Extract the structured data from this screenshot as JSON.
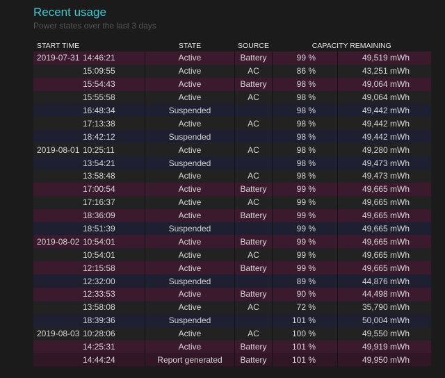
{
  "section": {
    "title": "Recent usage",
    "subtitle": "Power states over the last 3 days"
  },
  "columns": [
    "START TIME",
    "STATE",
    "SOURCE",
    "CAPACITY REMAINING"
  ],
  "colors": {
    "title": "#3cc8d2",
    "battery_row": "#3c1a2e",
    "ac_row": "#222222",
    "suspended_row": "#1f1f32",
    "report_row": "#311726"
  },
  "rows": [
    {
      "date": "2019-07-31",
      "time": "14:46:21",
      "state": "Active",
      "source": "Battery",
      "percent": "99 %",
      "capacity": "49,519 mWh",
      "kind": "battery"
    },
    {
      "date": "",
      "time": "15:09:55",
      "state": "Active",
      "source": "AC",
      "percent": "86 %",
      "capacity": "43,251 mWh",
      "kind": "ac"
    },
    {
      "date": "",
      "time": "15:54:43",
      "state": "Active",
      "source": "Battery",
      "percent": "98 %",
      "capacity": "49,064 mWh",
      "kind": "battery"
    },
    {
      "date": "",
      "time": "15:55:58",
      "state": "Active",
      "source": "AC",
      "percent": "98 %",
      "capacity": "49,064 mWh",
      "kind": "ac"
    },
    {
      "date": "",
      "time": "16:48:34",
      "state": "Suspended",
      "source": "",
      "percent": "98 %",
      "capacity": "49,442 mWh",
      "kind": "suspended"
    },
    {
      "date": "",
      "time": "17:13:38",
      "state": "Active",
      "source": "AC",
      "percent": "98 %",
      "capacity": "49,442 mWh",
      "kind": "ac"
    },
    {
      "date": "",
      "time": "18:42:12",
      "state": "Suspended",
      "source": "",
      "percent": "98 %",
      "capacity": "49,442 mWh",
      "kind": "suspended"
    },
    {
      "date": "2019-08-01",
      "time": "10:25:11",
      "state": "Active",
      "source": "AC",
      "percent": "98 %",
      "capacity": "49,280 mWh",
      "kind": "ac"
    },
    {
      "date": "",
      "time": "13:54:21",
      "state": "Suspended",
      "source": "",
      "percent": "98 %",
      "capacity": "49,473 mWh",
      "kind": "suspended"
    },
    {
      "date": "",
      "time": "13:58:48",
      "state": "Active",
      "source": "AC",
      "percent": "98 %",
      "capacity": "49,473 mWh",
      "kind": "ac"
    },
    {
      "date": "",
      "time": "17:00:54",
      "state": "Active",
      "source": "Battery",
      "percent": "99 %",
      "capacity": "49,665 mWh",
      "kind": "battery"
    },
    {
      "date": "",
      "time": "17:16:37",
      "state": "Active",
      "source": "AC",
      "percent": "99 %",
      "capacity": "49,665 mWh",
      "kind": "ac"
    },
    {
      "date": "",
      "time": "18:36:09",
      "state": "Active",
      "source": "Battery",
      "percent": "99 %",
      "capacity": "49,665 mWh",
      "kind": "battery"
    },
    {
      "date": "",
      "time": "18:51:39",
      "state": "Suspended",
      "source": "",
      "percent": "99 %",
      "capacity": "49,665 mWh",
      "kind": "suspended"
    },
    {
      "date": "2019-08-02",
      "time": "10:54:01",
      "state": "Active",
      "source": "Battery",
      "percent": "99 %",
      "capacity": "49,665 mWh",
      "kind": "battery"
    },
    {
      "date": "",
      "time": "10:54:01",
      "state": "Active",
      "source": "AC",
      "percent": "99 %",
      "capacity": "49,665 mWh",
      "kind": "ac"
    },
    {
      "date": "",
      "time": "12:15:58",
      "state": "Active",
      "source": "Battery",
      "percent": "99 %",
      "capacity": "49,665 mWh",
      "kind": "battery"
    },
    {
      "date": "",
      "time": "12:32:00",
      "state": "Suspended",
      "source": "",
      "percent": "89 %",
      "capacity": "44,876 mWh",
      "kind": "suspended"
    },
    {
      "date": "",
      "time": "12:33:53",
      "state": "Active",
      "source": "Battery",
      "percent": "90 %",
      "capacity": "44,498 mWh",
      "kind": "battery"
    },
    {
      "date": "",
      "time": "13:58:08",
      "state": "Active",
      "source": "AC",
      "percent": "72 %",
      "capacity": "35,790 mWh",
      "kind": "ac"
    },
    {
      "date": "",
      "time": "18:39:36",
      "state": "Suspended",
      "source": "",
      "percent": "101 %",
      "capacity": "50,004 mWh",
      "kind": "suspended"
    },
    {
      "date": "2019-08-03",
      "time": "10:28:06",
      "state": "Active",
      "source": "AC",
      "percent": "100 %",
      "capacity": "49,550 mWh",
      "kind": "ac"
    },
    {
      "date": "",
      "time": "14:25:31",
      "state": "Active",
      "source": "Battery",
      "percent": "101 %",
      "capacity": "49,919 mWh",
      "kind": "battery"
    },
    {
      "date": "",
      "time": "14:44:24",
      "state": "Report generated",
      "source": "Battery",
      "percent": "101 %",
      "capacity": "49,950 mWh",
      "kind": "report"
    }
  ]
}
